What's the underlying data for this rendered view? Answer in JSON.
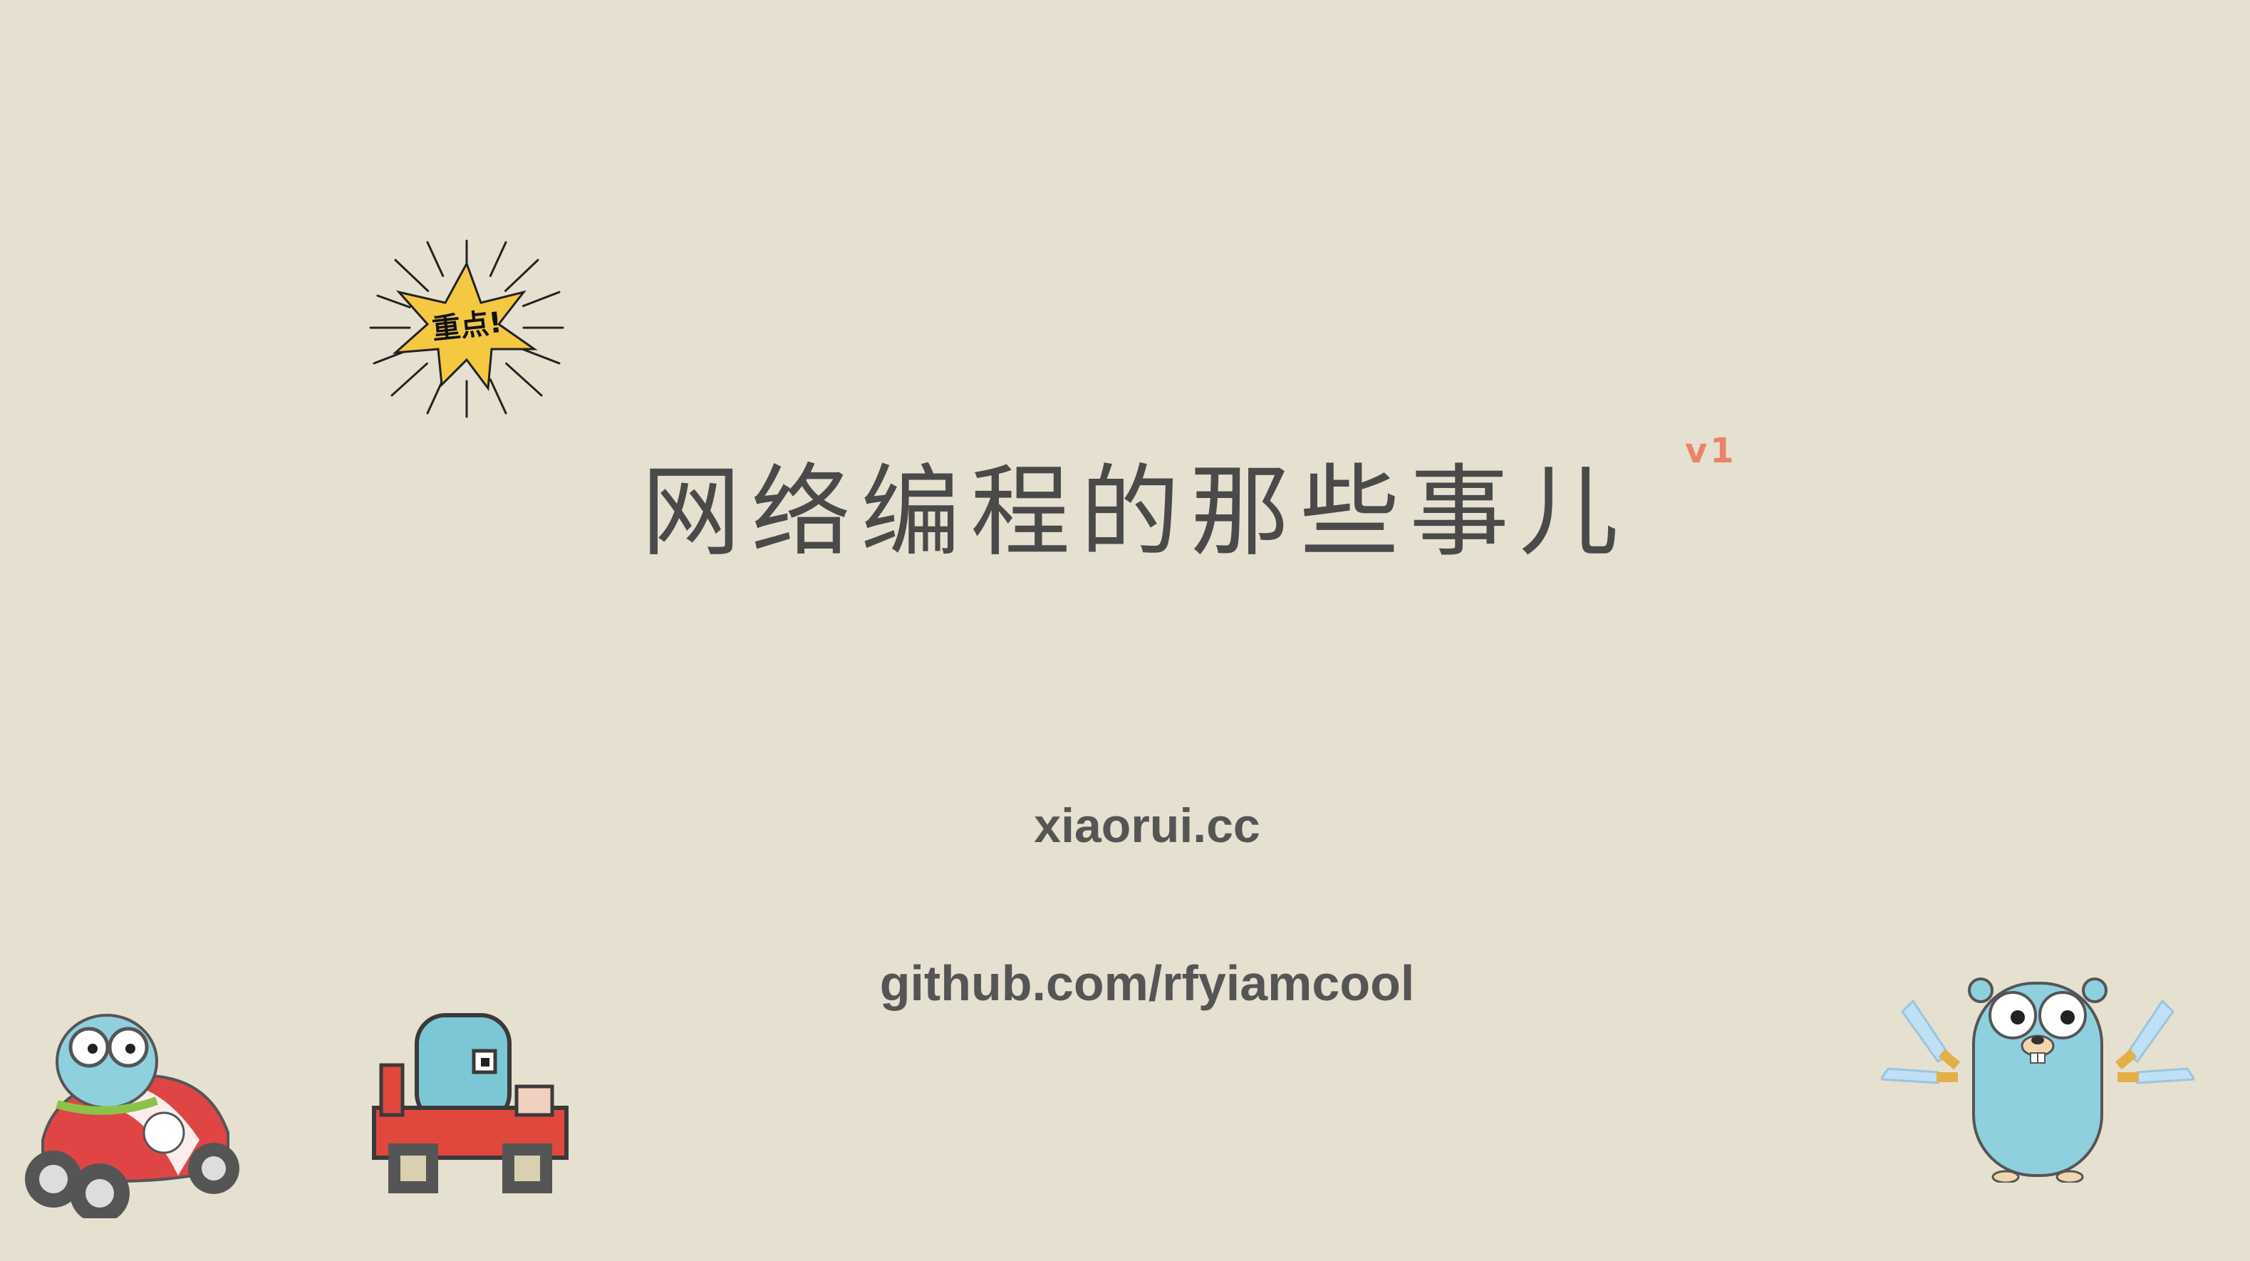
{
  "slide": {
    "title": "网络编程的那些事儿",
    "version": "v1",
    "badge": "重点!",
    "website": "xiaorui.cc",
    "github": "github.com/rfyiamcool"
  },
  "icons": [
    "starburst-badge-icon",
    "gopher-racer-icon",
    "pixel-gopher-kart-icon",
    "gopher-swords-icon"
  ],
  "colors": {
    "background": "#e6e0d0",
    "text": "#4a4a4a",
    "accent": "#e8846a",
    "gopher": "#8fd0df",
    "badge": "#f5c842"
  }
}
